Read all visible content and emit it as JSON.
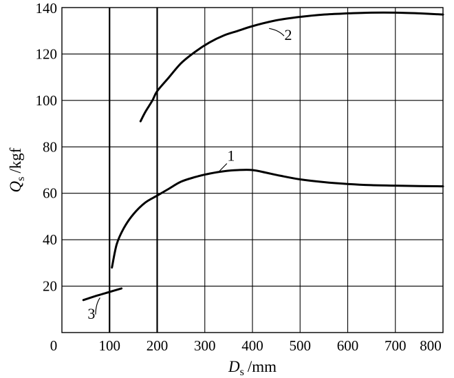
{
  "chart_data": {
    "type": "line",
    "title": "",
    "xlabel": {
      "symbol": "D",
      "subscript": "s",
      "unit": "/mm"
    },
    "ylabel": {
      "symbol": "Q",
      "subscript": "s",
      "unit": "/kgf"
    },
    "xlim": [
      0,
      800
    ],
    "ylim": [
      0,
      140
    ],
    "xticks": [
      "0",
      "100",
      "200",
      "300",
      "400",
      "500",
      "600",
      "700",
      "800"
    ],
    "yticks": [
      "20",
      "40",
      "60",
      "80",
      "100",
      "120",
      "140"
    ],
    "grid": true,
    "emphasized_x_gridlines": [
      100,
      200
    ],
    "series": [
      {
        "name": "1",
        "points": [
          [
            105,
            28
          ],
          [
            115,
            38
          ],
          [
            130,
            45
          ],
          [
            150,
            51
          ],
          [
            175,
            56
          ],
          [
            200,
            59
          ],
          [
            225,
            62
          ],
          [
            250,
            65
          ],
          [
            280,
            67
          ],
          [
            310,
            68.5
          ],
          [
            340,
            69.5
          ],
          [
            370,
            70
          ],
          [
            400,
            70
          ],
          [
            430,
            68.8
          ],
          [
            460,
            67.5
          ],
          [
            500,
            66
          ],
          [
            550,
            64.8
          ],
          [
            600,
            64
          ],
          [
            650,
            63.5
          ],
          [
            700,
            63.3
          ],
          [
            750,
            63.1
          ],
          [
            800,
            63
          ]
        ]
      },
      {
        "name": "2",
        "points": [
          [
            165,
            91
          ],
          [
            175,
            95
          ],
          [
            190,
            100
          ],
          [
            200,
            104
          ],
          [
            225,
            110
          ],
          [
            250,
            116
          ],
          [
            280,
            121
          ],
          [
            310,
            125
          ],
          [
            340,
            128
          ],
          [
            370,
            130
          ],
          [
            400,
            132
          ],
          [
            450,
            134.5
          ],
          [
            500,
            136
          ],
          [
            550,
            137
          ],
          [
            600,
            137.5
          ],
          [
            650,
            137.8
          ],
          [
            700,
            137.8
          ],
          [
            750,
            137.5
          ],
          [
            800,
            137
          ]
        ]
      },
      {
        "name": "3",
        "points": [
          [
            45,
            14
          ],
          [
            75,
            16
          ],
          [
            100,
            17.5
          ],
          [
            125,
            19
          ]
        ]
      }
    ],
    "labels": [
      {
        "text": "1",
        "x": 355,
        "y": 74,
        "arrow_to": [
          328,
          69
        ]
      },
      {
        "text": "2",
        "x": 475,
        "y": 126,
        "arrow_to": [
          435,
          131
        ]
      },
      {
        "text": "3",
        "x": 62,
        "y": 6,
        "arrow_to": [
          80,
          15
        ]
      }
    ]
  }
}
